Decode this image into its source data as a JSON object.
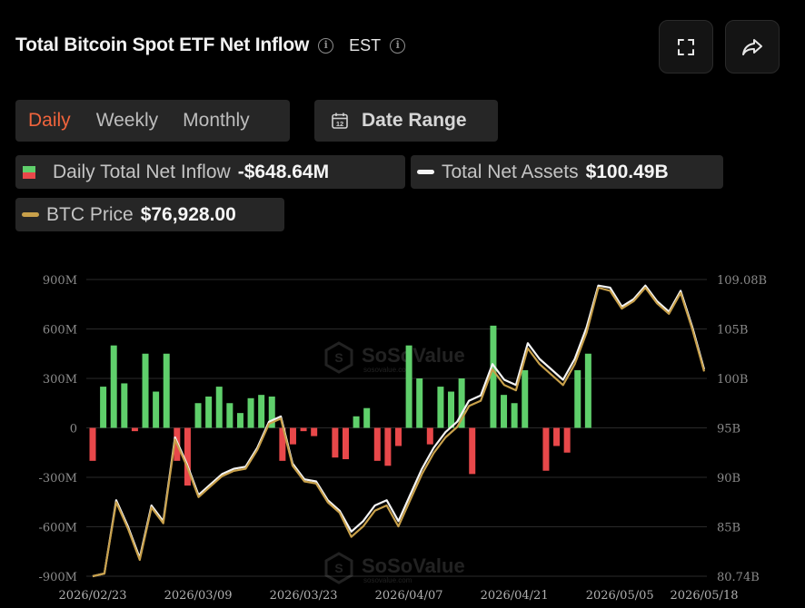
{
  "header": {
    "title": "Total Bitcoin Spot ETF Net Inflow",
    "timezone": "EST"
  },
  "controls": {
    "tabs": [
      {
        "label": "Daily",
        "active": true
      },
      {
        "label": "Weekly",
        "active": false
      },
      {
        "label": "Monthly",
        "active": false
      }
    ],
    "date_range_label": "Date Range",
    "calendar_day": "12"
  },
  "legend": {
    "inflow": {
      "name": "Daily Total Net Inflow",
      "value": "-$648.64M"
    },
    "assets": {
      "name": "Total Net Assets",
      "value": "$100.49B"
    },
    "btc": {
      "name": "BTC Price",
      "value": "$76,928.00"
    }
  },
  "watermark": {
    "name": "SoSoValue",
    "domain": "sosovalue.com"
  },
  "colors": {
    "positive": "#5fcf6b",
    "negative": "#e8484a",
    "assets_line": "#f5f5f5",
    "btc_line": "#c8a04a",
    "accent": "#f0643c"
  },
  "chart_data": {
    "type": "bar",
    "x_ticks": [
      "2026/02/23",
      "2026/03/09",
      "2026/03/23",
      "2026/04/07",
      "2026/04/21",
      "2026/05/05",
      "2026/05/18"
    ],
    "x_tick_index": [
      0,
      10,
      20,
      30,
      40,
      50,
      58
    ],
    "left_axis": {
      "ticks": [
        "900M",
        "600M",
        "300M",
        "0",
        "-300M",
        "-600M",
        "-900M"
      ],
      "range": [
        -900,
        900
      ],
      "unit": "M"
    },
    "right_axis": {
      "ticks": [
        "109.08B",
        "105B",
        "100B",
        "95B",
        "90B",
        "85B",
        "80.74B"
      ],
      "range": [
        80.74,
        109.08
      ],
      "unit": "B"
    },
    "grid": true,
    "series": [
      {
        "name": "Daily Total Net Inflow",
        "axis": "left",
        "values": [
          -200,
          250,
          500,
          270,
          -20,
          450,
          220,
          450,
          -200,
          -350,
          150,
          190,
          250,
          150,
          90,
          180,
          200,
          190,
          -200,
          -100,
          -20,
          -50,
          0,
          -180,
          -190,
          70,
          120,
          -200,
          -230,
          -110,
          500,
          300,
          -100,
          250,
          220,
          300,
          -280,
          0,
          620,
          200,
          150,
          350,
          0,
          -260,
          -110,
          -150,
          350,
          450,
          0,
          0,
          0,
          0,
          0,
          0,
          0,
          0,
          0,
          0,
          0
        ],
        "values_note": ""
      },
      {
        "name": "Total Net Assets",
        "axis": "right",
        "values": [
          80.74,
          81.0,
          88.0,
          85.5,
          82.5,
          87.5,
          86.0,
          94.0,
          91.5,
          88.5,
          89.5,
          90.5,
          91.0,
          91.2,
          93.0,
          95.5,
          96.0,
          91.5,
          90.0,
          89.8,
          88.0,
          87.0,
          85.0,
          86.0,
          87.5,
          88.0,
          86.0,
          88.5,
          91.0,
          93.0,
          94.5,
          95.5,
          97.5,
          98.0,
          101.0,
          99.5,
          99.0,
          103.0,
          101.5,
          100.5,
          99.5,
          101.5,
          104.5,
          108.5,
          108.3,
          106.5,
          107.2,
          108.5,
          107.0,
          106.0,
          108.0,
          104.5,
          100.5
        ]
      },
      {
        "name": "BTC Price",
        "axis": "right",
        "values": [
          80.74,
          81.0,
          87.8,
          85.3,
          82.3,
          87.3,
          85.8,
          93.8,
          91.3,
          88.3,
          89.3,
          90.3,
          90.8,
          91.0,
          92.8,
          95.3,
          95.8,
          91.3,
          89.8,
          89.6,
          87.8,
          86.8,
          84.5,
          85.5,
          87.0,
          87.5,
          85.5,
          88.0,
          90.5,
          92.5,
          94.0,
          95.0,
          97.0,
          97.5,
          100.5,
          99.0,
          98.5,
          102.5,
          101.0,
          100.0,
          99.0,
          101.0,
          104.0,
          108.3,
          108.0,
          106.3,
          107.0,
          108.3,
          106.8,
          105.8,
          107.8,
          104.3,
          100.3
        ]
      }
    ]
  }
}
